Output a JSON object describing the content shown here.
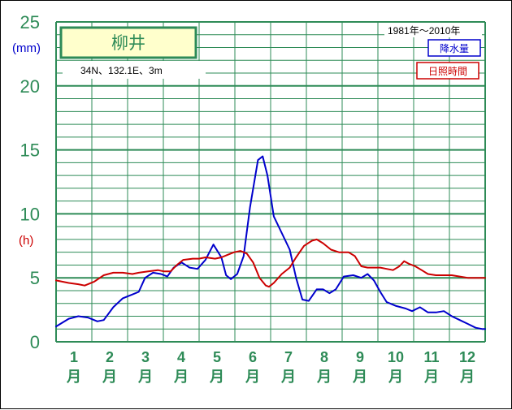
{
  "station": {
    "name": "柳井",
    "coords": "34N、132.1E、3m",
    "period": "1981年〜2010年"
  },
  "units": {
    "precip": "(mm)",
    "sunshine": "(h)"
  },
  "legend": {
    "precip_label": "降水量",
    "sunshine_label": "日照時間"
  },
  "colors": {
    "grid": "#2e8b57",
    "precip": "#0000cc",
    "sunshine": "#cc0000",
    "title_bg": "#ffffcc"
  },
  "chart_data": {
    "type": "line",
    "title": "柳井",
    "ylabel": "(mm)",
    "ylabel_secondary": "(h)",
    "ylim": [
      0,
      25
    ],
    "yticks": [
      "0",
      "5",
      "10",
      "15",
      "20",
      "25"
    ],
    "categories": [
      "1月",
      "2月",
      "3月",
      "4月",
      "5月",
      "6月",
      "7月",
      "8月",
      "9月",
      "10月",
      "11月",
      "12月"
    ],
    "x_month_start": 0.5,
    "x_month_end": 12.5,
    "series": [
      {
        "name": "降水量",
        "color": "#0000cc",
        "points": [
          [
            0.5,
            1.2
          ],
          [
            0.9,
            1.8
          ],
          [
            1.2,
            2.0
          ],
          [
            1.5,
            1.9
          ],
          [
            1.8,
            1.6
          ],
          [
            2.0,
            1.7
          ],
          [
            2.3,
            2.7
          ],
          [
            2.6,
            3.4
          ],
          [
            2.9,
            3.7
          ],
          [
            3.1,
            3.9
          ],
          [
            3.3,
            5.0
          ],
          [
            3.55,
            5.4
          ],
          [
            3.8,
            5.3
          ],
          [
            4.0,
            5.1
          ],
          [
            4.2,
            5.8
          ],
          [
            4.45,
            6.2
          ],
          [
            4.7,
            5.8
          ],
          [
            4.95,
            5.7
          ],
          [
            5.2,
            6.4
          ],
          [
            5.45,
            7.6
          ],
          [
            5.7,
            6.6
          ],
          [
            5.85,
            5.2
          ],
          [
            6.0,
            4.9
          ],
          [
            6.2,
            5.3
          ],
          [
            6.4,
            6.7
          ],
          [
            6.6,
            10.5
          ],
          [
            6.85,
            14.2
          ],
          [
            7.0,
            14.5
          ],
          [
            7.15,
            13.0
          ],
          [
            7.35,
            9.8
          ],
          [
            7.6,
            8.5
          ],
          [
            7.85,
            7.2
          ],
          [
            8.05,
            5.0
          ],
          [
            8.25,
            3.3
          ],
          [
            8.45,
            3.2
          ],
          [
            8.7,
            4.1
          ],
          [
            8.9,
            4.1
          ],
          [
            9.1,
            3.8
          ],
          [
            9.3,
            4.1
          ],
          [
            9.55,
            5.1
          ],
          [
            9.85,
            5.2
          ],
          [
            10.1,
            5.0
          ],
          [
            10.3,
            5.3
          ],
          [
            10.5,
            4.8
          ],
          [
            10.7,
            3.9
          ],
          [
            10.9,
            3.1
          ],
          [
            11.2,
            2.8
          ],
          [
            11.5,
            2.6
          ],
          [
            11.7,
            2.4
          ],
          [
            11.95,
            2.7
          ],
          [
            12.2,
            2.3
          ],
          [
            12.45,
            2.3
          ],
          [
            12.7,
            2.4
          ],
          [
            12.95,
            2.0
          ],
          [
            13.2,
            1.7
          ],
          [
            13.45,
            1.4
          ],
          [
            13.7,
            1.1
          ],
          [
            13.9,
            1.0
          ],
          [
            14.0,
            1.0
          ]
        ]
      },
      {
        "name": "日照時間",
        "color": "#cc0000",
        "points": [
          [
            0.5,
            4.8
          ],
          [
            0.9,
            4.6
          ],
          [
            1.2,
            4.5
          ],
          [
            1.4,
            4.4
          ],
          [
            1.7,
            4.7
          ],
          [
            2.0,
            5.2
          ],
          [
            2.3,
            5.4
          ],
          [
            2.6,
            5.4
          ],
          [
            2.9,
            5.3
          ],
          [
            3.1,
            5.4
          ],
          [
            3.4,
            5.5
          ],
          [
            3.7,
            5.6
          ],
          [
            3.9,
            5.5
          ],
          [
            4.1,
            5.5
          ],
          [
            4.3,
            6.0
          ],
          [
            4.5,
            6.4
          ],
          [
            4.8,
            6.5
          ],
          [
            5.0,
            6.5
          ],
          [
            5.2,
            6.6
          ],
          [
            5.5,
            6.5
          ],
          [
            5.7,
            6.6
          ],
          [
            5.9,
            6.8
          ],
          [
            6.1,
            7.0
          ],
          [
            6.3,
            7.1
          ],
          [
            6.5,
            6.9
          ],
          [
            6.7,
            6.2
          ],
          [
            6.9,
            5.0
          ],
          [
            7.1,
            4.4
          ],
          [
            7.2,
            4.3
          ],
          [
            7.35,
            4.6
          ],
          [
            7.6,
            5.3
          ],
          [
            7.85,
            5.8
          ],
          [
            8.05,
            6.6
          ],
          [
            8.3,
            7.5
          ],
          [
            8.55,
            7.9
          ],
          [
            8.7,
            8.0
          ],
          [
            8.9,
            7.7
          ],
          [
            9.15,
            7.2
          ],
          [
            9.4,
            7.0
          ],
          [
            9.7,
            7.0
          ],
          [
            9.9,
            6.7
          ],
          [
            10.1,
            5.9
          ],
          [
            10.3,
            5.8
          ],
          [
            10.5,
            5.8
          ],
          [
            10.7,
            5.8
          ],
          [
            10.9,
            5.7
          ],
          [
            11.1,
            5.6
          ],
          [
            11.3,
            5.9
          ],
          [
            11.45,
            6.3
          ],
          [
            11.6,
            6.1
          ],
          [
            11.8,
            5.9
          ],
          [
            12.0,
            5.6
          ],
          [
            12.2,
            5.3
          ],
          [
            12.45,
            5.2
          ],
          [
            12.7,
            5.2
          ],
          [
            12.95,
            5.2
          ],
          [
            13.2,
            5.1
          ],
          [
            13.45,
            5.0
          ],
          [
            13.7,
            5.0
          ],
          [
            14.0,
            5.0
          ]
        ]
      }
    ]
  }
}
